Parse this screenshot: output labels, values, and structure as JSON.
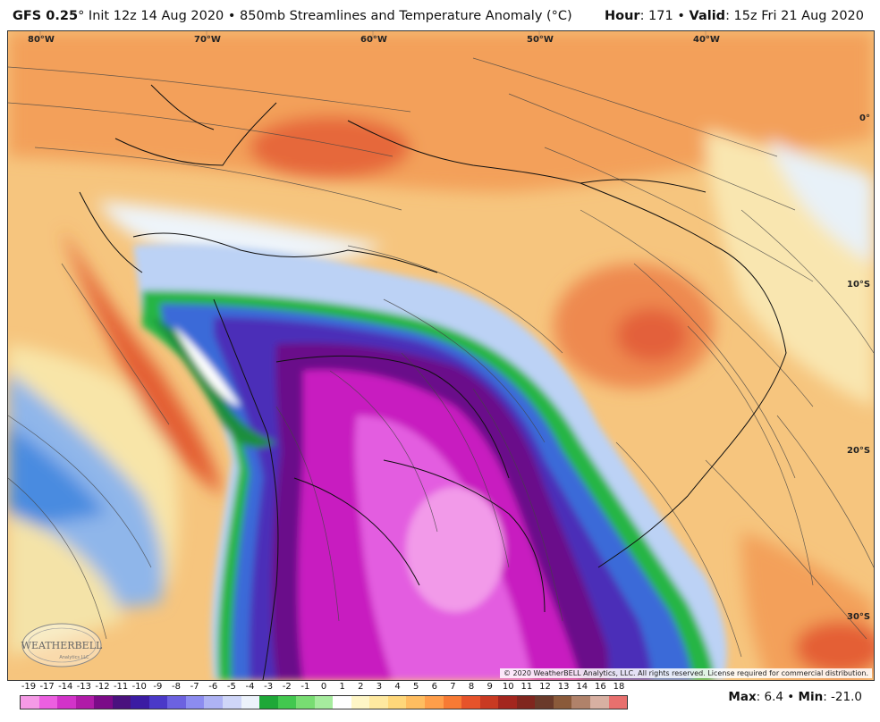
{
  "header": {
    "model": "GFS 0.25",
    "model_suffix": "° Init 12z 14 Aug 2020 • 850mb Streamlines and Temperature Anomaly (°C)",
    "hour_label": "Hour",
    "hour_value": ": 171 • ",
    "valid_label": "Valid",
    "valid_value": ": 15z Fri 21 Aug 2020"
  },
  "map": {
    "longitude_labels": [
      "80°W",
      "70°W",
      "60°W",
      "50°W",
      "40°W"
    ],
    "latitude_labels": [
      "0°",
      "10°S",
      "20°S",
      "30°S"
    ],
    "copyright": "© 2020 WeatherBELL Analytics, LLC. All rights reserved. License required for commercial distribution.",
    "logo_text": "WEATHERBELL",
    "logo_subtext": "Analytics LLC"
  },
  "legend": {
    "labels": [
      "-19",
      "-17",
      "-14",
      "-13",
      "-12",
      "-11",
      "-10",
      "-9",
      "-8",
      "-7",
      "-6",
      "-5",
      "-4",
      "-3",
      "-2",
      "-1",
      "0",
      "1",
      "2",
      "3",
      "4",
      "5",
      "6",
      "7",
      "8",
      "9",
      "10",
      "11",
      "12",
      "13",
      "14",
      "16",
      "18"
    ],
    "colors": [
      "#f59ae6",
      "#ec5fe0",
      "#d233c9",
      "#b01ba8",
      "#7b0b88",
      "#4a127e",
      "#3b1ca3",
      "#4a39c8",
      "#6c62e0",
      "#8c8cf0",
      "#aeb3f4",
      "#cfd6f8",
      "#ecf2fb",
      "#1ea838",
      "#42c84f",
      "#78dd72",
      "#a6ec9e",
      "#ffffff",
      "#fff6c6",
      "#ffe9a0",
      "#ffd77a",
      "#ffbd60",
      "#ff9e4a",
      "#f77a34",
      "#e6532a",
      "#c93a22",
      "#a3261e",
      "#80261e",
      "#6a3a2a",
      "#8a5a3a",
      "#b0826a",
      "#d8b0a2",
      "#e8706e"
    ],
    "label_positions": [
      0,
      3,
      6,
      9,
      12,
      15,
      18,
      21,
      24,
      27,
      30,
      33,
      36,
      39,
      42,
      45,
      48,
      51,
      54,
      57,
      60,
      63,
      66,
      69,
      72,
      75,
      78,
      81,
      84,
      87,
      90,
      94,
      98
    ]
  },
  "stats": {
    "max_label": "Max",
    "max_value": ": 6.4 • ",
    "min_label": "Min",
    "min_value": ": -21.0"
  }
}
